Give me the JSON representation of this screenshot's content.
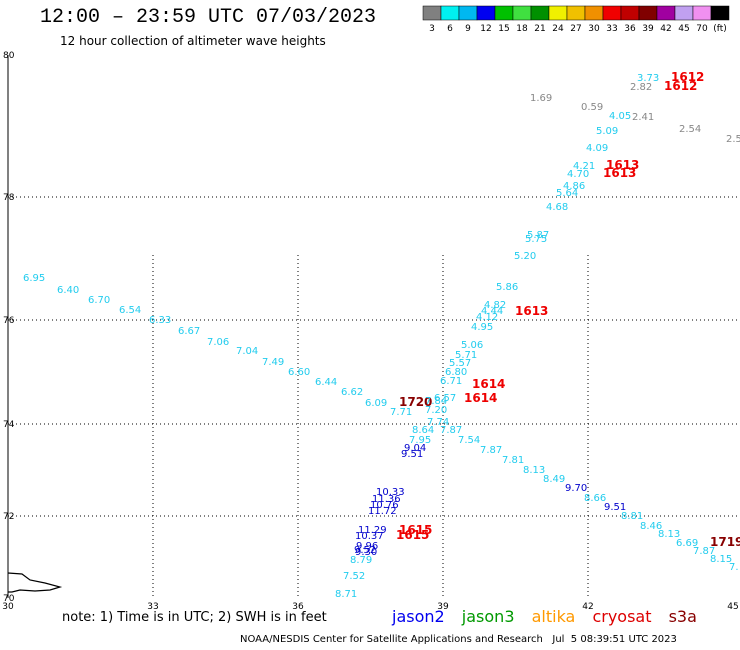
{
  "header": {
    "title": "12:00 – 23:59 UTC 07/03/2023",
    "subtitle": "12 hour collection of altimeter wave heights"
  },
  "legend": {
    "colors": [
      "#808080",
      "#00f0f0",
      "#00b8f0",
      "#0000f0",
      "#00c000",
      "#40e040",
      "#009000",
      "#f0f000",
      "#f0c000",
      "#f09000",
      "#f00000",
      "#c00000",
      "#800000",
      "#a000a0",
      "#c0a0f0",
      "#f090f0",
      "#000000"
    ],
    "labels": [
      "3",
      "6",
      "9",
      "12",
      "15",
      "18",
      "21",
      "24",
      "27",
      "30",
      "33",
      "36",
      "39",
      "42",
      "45",
      "70",
      "(ft)"
    ]
  },
  "map": {
    "y_ticks": [
      "80",
      "78",
      "76",
      "74",
      "72",
      "70"
    ],
    "x_ticks": [
      "30",
      "33",
      "36",
      "39",
      "42",
      "45"
    ]
  },
  "observations": [
    {
      "t": "3.73",
      "c": "#22ccee"
    },
    {
      "t": "1612",
      "c": "#ee0000"
    },
    {
      "t": "2.82",
      "c": "#888888"
    },
    {
      "t": "1612",
      "c": "#ee0000"
    },
    {
      "t": "1.69",
      "c": "#888888"
    },
    {
      "t": "0.59",
      "c": "#888888"
    },
    {
      "t": "4.05",
      "c": "#22ccee"
    },
    {
      "t": "2.41",
      "c": "#888888"
    },
    {
      "t": "2.54",
      "c": "#888888"
    },
    {
      "t": "2.5",
      "c": "#888888"
    },
    {
      "t": "5.09",
      "c": "#22ccee"
    },
    {
      "t": "4.09",
      "c": "#22ccee"
    },
    {
      "t": "4.21",
      "c": "#22ccee"
    },
    {
      "t": "1613",
      "c": "#ee0000"
    },
    {
      "t": "4.70",
      "c": "#22ccee"
    },
    {
      "t": "1613",
      "c": "#ee0000"
    },
    {
      "t": "4.86",
      "c": "#22ccee"
    },
    {
      "t": "5.64",
      "c": "#22ccee"
    },
    {
      "t": "4.68",
      "c": "#22ccee"
    },
    {
      "t": "5.87",
      "c": "#22ccee"
    },
    {
      "t": "5.75",
      "c": "#22ccee"
    },
    {
      "t": "5.20",
      "c": "#22ccee"
    },
    {
      "t": "5.86",
      "c": "#22ccee"
    },
    {
      "t": "4.82",
      "c": "#22ccee"
    },
    {
      "t": "4.44",
      "c": "#22ccee"
    },
    {
      "t": "1613",
      "c": "#ee0000"
    },
    {
      "t": "4.12",
      "c": "#22ccee"
    },
    {
      "t": "4.95",
      "c": "#22ccee"
    },
    {
      "t": "6.95",
      "c": "#22ccee"
    },
    {
      "t": "6.40",
      "c": "#22ccee"
    },
    {
      "t": "6.70",
      "c": "#22ccee"
    },
    {
      "t": "6.54",
      "c": "#22ccee"
    },
    {
      "t": "6.33",
      "c": "#22ccee"
    },
    {
      "t": "6.67",
      "c": "#22ccee"
    },
    {
      "t": "7.06",
      "c": "#22ccee"
    },
    {
      "t": "7.04",
      "c": "#22ccee"
    },
    {
      "t": "7.49",
      "c": "#22ccee"
    },
    {
      "t": "6.60",
      "c": "#22ccee"
    },
    {
      "t": "6.44",
      "c": "#22ccee"
    },
    {
      "t": "6.62",
      "c": "#22ccee"
    },
    {
      "t": "6.09",
      "c": "#22ccee"
    },
    {
      "t": "1720",
      "c": "#880000"
    },
    {
      "t": "7.71",
      "c": "#22ccee"
    },
    {
      "t": "5.06",
      "c": "#22ccee"
    },
    {
      "t": "5.71",
      "c": "#22ccee"
    },
    {
      "t": "5.57",
      "c": "#22ccee"
    },
    {
      "t": "6.80",
      "c": "#22ccee"
    },
    {
      "t": "6.71",
      "c": "#22ccee"
    },
    {
      "t": "1614",
      "c": "#ee0000"
    },
    {
      "t": "6.57",
      "c": "#22ccee"
    },
    {
      "t": "1614",
      "c": "#ee0000"
    },
    {
      "t": "7.84",
      "c": "#22ccee"
    },
    {
      "t": "7.20",
      "c": "#22ccee"
    },
    {
      "t": "7.74",
      "c": "#22ccee"
    },
    {
      "t": "8.64",
      "c": "#22ccee"
    },
    {
      "t": "7.87",
      "c": "#22ccee"
    },
    {
      "t": "7.95",
      "c": "#22ccee"
    },
    {
      "t": "7.54",
      "c": "#22ccee"
    },
    {
      "t": "9.04",
      "c": "#0000cc"
    },
    {
      "t": "9.51",
      "c": "#0000cc"
    },
    {
      "t": "7.87",
      "c": "#22ccee"
    },
    {
      "t": "7.81",
      "c": "#22ccee"
    },
    {
      "t": "8.13",
      "c": "#22ccee"
    },
    {
      "t": "8.49",
      "c": "#22ccee"
    },
    {
      "t": "9.70",
      "c": "#0000cc"
    },
    {
      "t": "8.66",
      "c": "#22ccee"
    },
    {
      "t": "9.51",
      "c": "#0000cc"
    },
    {
      "t": "8.81",
      "c": "#22ccee"
    },
    {
      "t": "8.46",
      "c": "#22ccee"
    },
    {
      "t": "8.13",
      "c": "#22ccee"
    },
    {
      "t": "6.69",
      "c": "#22ccee"
    },
    {
      "t": "1719",
      "c": "#880000"
    },
    {
      "t": "7.87",
      "c": "#22ccee"
    },
    {
      "t": "8.15",
      "c": "#22ccee"
    },
    {
      "t": "7.",
      "c": "#22ccee"
    },
    {
      "t": "10.33",
      "c": "#0000cc"
    },
    {
      "t": "11.36",
      "c": "#0000cc"
    },
    {
      "t": "10.76",
      "c": "#0000cc"
    },
    {
      "t": "11.72",
      "c": "#0000cc"
    },
    {
      "t": "11.29",
      "c": "#0000cc"
    },
    {
      "t": "1615",
      "c": "#ee0000"
    },
    {
      "t": "10.37",
      "c": "#0000cc"
    },
    {
      "t": "1615",
      "c": "#ee0000"
    },
    {
      "t": "9.96",
      "c": "#0000cc"
    },
    {
      "t": "9.52",
      "c": "#0000cc"
    },
    {
      "t": "9.30",
      "c": "#0000cc"
    },
    {
      "t": "8.79",
      "c": "#22ccee"
    },
    {
      "t": "7.52",
      "c": "#22ccee"
    },
    {
      "t": "8.71",
      "c": "#22ccee"
    }
  ],
  "footer": {
    "note": "note: 1) Time is in UTC; 2) SWH is in feet",
    "satellites": [
      {
        "name": "jason2",
        "color": "#0000ee"
      },
      {
        "name": "jason3",
        "color": "#009900"
      },
      {
        "name": "altika",
        "color": "#ff9900"
      },
      {
        "name": "cryosat",
        "color": "#dd0000"
      },
      {
        "name": "s3a",
        "color": "#880000"
      }
    ],
    "credit": "NOAA/NESDIS Center for Satellite Applications and Research   Jul  5 08:39:51 UTC 2023"
  }
}
